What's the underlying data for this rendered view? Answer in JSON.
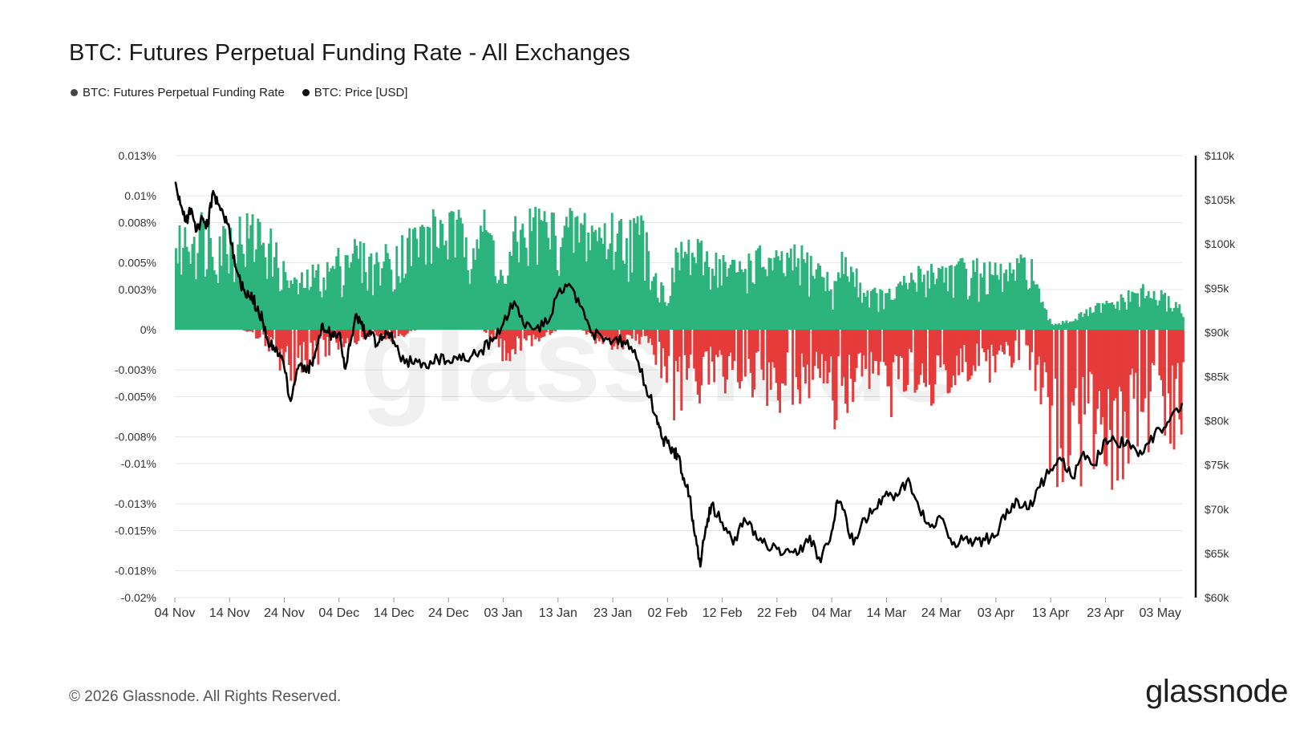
{
  "title": "BTC: Futures Perpetual Funding Rate - All Exchanges",
  "legend": [
    {
      "label": "BTC: Futures Perpetual Funding Rate",
      "color": "#444444"
    },
    {
      "label": "BTC: Price [USD]",
      "color": "#111111"
    }
  ],
  "watermark": "glassnode",
  "footer": {
    "copyright": "© 2026 Glassnode. All Rights Reserved.",
    "logo": "glassnode"
  },
  "colors": {
    "positive": "#2db37c",
    "negative": "#e53b3b",
    "price": "#000000",
    "grid": "#e6e6e6"
  },
  "chart_data": {
    "type": "bar",
    "title": "BTC: Futures Perpetual Funding Rate - All Exchanges",
    "left_axis": {
      "ylim": [
        -0.02,
        0.013
      ],
      "ticks": [
        0.013,
        0.01,
        0.008,
        0.005,
        0.003,
        0,
        -0.003,
        -0.005,
        -0.008,
        -0.01,
        -0.013,
        -0.015,
        -0.018,
        -0.02
      ],
      "tick_labels": [
        "0.013%",
        "0.01%",
        "0.008%",
        "0.005%",
        "0.003%",
        "0%",
        "-0.003%",
        "-0.005%",
        "-0.008%",
        "-0.01%",
        "-0.013%",
        "-0.015%",
        "-0.018%",
        "-0.02%"
      ]
    },
    "right_axis": {
      "ylim": [
        60000,
        110000
      ],
      "ticks": [
        110000,
        105000,
        100000,
        95000,
        90000,
        85000,
        80000,
        75000,
        70000,
        65000,
        60000
      ],
      "tick_labels": [
        "$110k",
        "$105k",
        "$100k",
        "$95k",
        "$90k",
        "$85k",
        "$80k",
        "$75k",
        "$70k",
        "$65k",
        "$60k"
      ]
    },
    "x_axis": {
      "tick_labels": [
        "04 Nov",
        "14 Nov",
        "24 Nov",
        "04 Dec",
        "14 Dec",
        "24 Dec",
        "03 Jan",
        "13 Jan",
        "23 Jan",
        "02 Feb",
        "12 Feb",
        "22 Feb",
        "04 Mar",
        "14 Mar",
        "24 Mar",
        "03 Apr",
        "13 Apr",
        "23 Apr",
        "03 May"
      ],
      "day_offsets": [
        0,
        10,
        20,
        30,
        40,
        50,
        60,
        70,
        80,
        90,
        100,
        110,
        120,
        130,
        140,
        150,
        160,
        170,
        180
      ],
      "range_days": [
        0,
        184
      ]
    },
    "series": [
      {
        "name": "BTC: Futures Perpetual Funding Rate",
        "axis": "left",
        "style": "bar",
        "envelope_days": [
          0,
          4,
          8,
          12,
          16,
          18,
          20,
          22,
          25,
          28,
          32,
          36,
          40,
          44,
          48,
          52,
          56,
          58,
          60,
          62,
          66,
          70,
          74,
          78,
          82,
          86,
          88,
          90,
          92,
          94,
          98,
          102,
          106,
          110,
          114,
          118,
          120,
          122,
          126,
          130,
          134,
          138,
          142,
          146,
          150,
          154,
          156,
          158,
          160,
          164,
          168,
          172,
          176,
          180,
          184
        ],
        "envelope_max": [
          0.0075,
          0.0095,
          0.0085,
          0.009,
          0.009,
          0.007,
          0.005,
          0.004,
          0.005,
          0.0055,
          0.0075,
          0.006,
          0.007,
          0.0085,
          0.0095,
          0.009,
          0.0095,
          0.008,
          0.004,
          0.0085,
          0.01,
          0.009,
          0.0095,
          0.009,
          0.009,
          0.009,
          0.004,
          0.0035,
          0.0075,
          0.007,
          0.0065,
          0.0055,
          0.0065,
          0.006,
          0.0065,
          0.0055,
          0.0035,
          0.0065,
          0.0035,
          0.003,
          0.0045,
          0.0055,
          0.0055,
          0.0055,
          0.005,
          0.0055,
          0.0065,
          0.0025,
          0.0005,
          0.001,
          0.002,
          0.0025,
          0.0035,
          0.003,
          0.002
        ],
        "envelope_min": [
          0,
          0,
          0,
          0,
          -0.001,
          -0.0025,
          -0.005,
          -0.004,
          -0.003,
          -0.002,
          -0.0015,
          -0.0005,
          -0.001,
          0,
          0,
          0,
          0,
          -0.0015,
          -0.003,
          -0.002,
          -0.001,
          0,
          0,
          -0.002,
          -0.0015,
          -0.001,
          -0.003,
          -0.006,
          -0.008,
          -0.006,
          -0.005,
          -0.005,
          -0.006,
          -0.0065,
          -0.006,
          -0.0065,
          -0.008,
          -0.0075,
          -0.0065,
          -0.007,
          -0.0055,
          -0.0065,
          -0.005,
          -0.004,
          -0.004,
          -0.003,
          -0.005,
          -0.008,
          -0.013,
          -0.0125,
          -0.0115,
          -0.0125,
          -0.0105,
          -0.0095,
          -0.0095
        ]
      },
      {
        "name": "BTC: Price [USD]",
        "axis": "right",
        "style": "line",
        "x_days": [
          0,
          1,
          2,
          3,
          4,
          5,
          6,
          7,
          8,
          9,
          10,
          11,
          12,
          13,
          14,
          15,
          16,
          17,
          18,
          19,
          20,
          21,
          22,
          23,
          24,
          25,
          26,
          27,
          28,
          29,
          30,
          31,
          32,
          33,
          34,
          35,
          36,
          37,
          38,
          39,
          40,
          42,
          44,
          46,
          48,
          50,
          52,
          54,
          56,
          58,
          60,
          62,
          64,
          66,
          68,
          70,
          72,
          74,
          76,
          78,
          80,
          82,
          84,
          86,
          88,
          89,
          90,
          91,
          92,
          93,
          94,
          95,
          96,
          97,
          98,
          100,
          102,
          104,
          106,
          108,
          110,
          112,
          114,
          116,
          118,
          120,
          121,
          122,
          124,
          126,
          128,
          130,
          132,
          134,
          136,
          138,
          140,
          142,
          144,
          146,
          148,
          150,
          152,
          154,
          156,
          158,
          160,
          162,
          164,
          166,
          168,
          170,
          172,
          174,
          176,
          178,
          180,
          182,
          184
        ],
        "y": [
          107000,
          104500,
          102500,
          104000,
          101500,
          103000,
          102000,
          106000,
          104500,
          103000,
          101500,
          97500,
          95500,
          94000,
          94500,
          92500,
          91500,
          89000,
          88500,
          87500,
          86000,
          82500,
          84500,
          86500,
          85500,
          86500,
          88500,
          91000,
          90000,
          89500,
          90000,
          86000,
          88500,
          92000,
          91000,
          89500,
          90000,
          88500,
          89500,
          90000,
          89000,
          86500,
          87000,
          86000,
          87000,
          86800,
          87500,
          87200,
          88000,
          89000,
          91000,
          93500,
          90500,
          90500,
          91000,
          94500,
          95500,
          93000,
          90000,
          89500,
          89000,
          89000,
          88000,
          84000,
          80500,
          78000,
          77500,
          76500,
          76000,
          73500,
          71500,
          67000,
          63500,
          68000,
          70500,
          68500,
          66000,
          69000,
          67500,
          66000,
          65500,
          65500,
          65000,
          67000,
          64000,
          67500,
          71000,
          70000,
          66000,
          69000,
          70000,
          72000,
          71500,
          73500,
          70000,
          68000,
          69000,
          66000,
          66500,
          66300,
          66500,
          67000,
          70000,
          71000,
          70000,
          72500,
          74500,
          75500,
          73500,
          76500,
          75000,
          78000,
          77500,
          77800,
          76000,
          77500,
          79000,
          80500,
          82000
        ]
      }
    ]
  }
}
